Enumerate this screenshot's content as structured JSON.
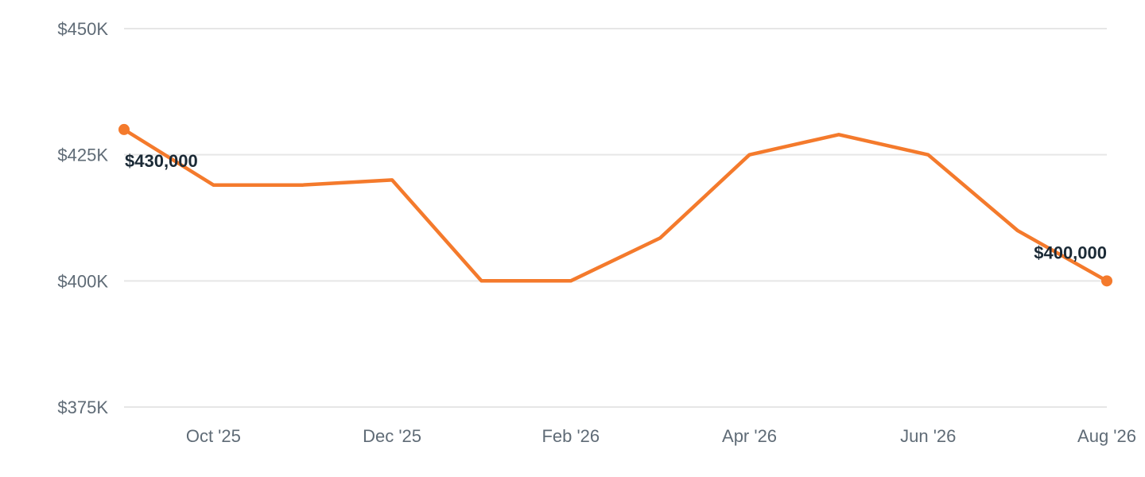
{
  "chart_data": {
    "type": "line",
    "title": "",
    "xlabel": "",
    "ylabel": "",
    "ylim": [
      375000,
      450000
    ],
    "y_ticks": [
      {
        "value": 450000,
        "label": "$450K"
      },
      {
        "value": 425000,
        "label": "$425K"
      },
      {
        "value": 400000,
        "label": "$400K"
      },
      {
        "value": 375000,
        "label": "$375K"
      }
    ],
    "x": [
      "2025-09",
      "2025-10",
      "2025-11",
      "2025-12",
      "2026-01",
      "2026-02",
      "2026-03",
      "2026-04",
      "2026-05",
      "2026-06",
      "2026-07",
      "2026-08"
    ],
    "x_ticks": [
      {
        "x": "2025-10",
        "label": "Oct '25"
      },
      {
        "x": "2025-12",
        "label": "Dec '25"
      },
      {
        "x": "2026-02",
        "label": "Feb '26"
      },
      {
        "x": "2026-04",
        "label": "Apr '26"
      },
      {
        "x": "2026-06",
        "label": "Jun '26"
      },
      {
        "x": "2026-08",
        "label": "Aug '26"
      }
    ],
    "grid": true,
    "legend": "none",
    "series": [
      {
        "color": "#f47a2c",
        "values": [
          430000,
          419000,
          419000,
          420000,
          400000,
          400000,
          408500,
          425000,
          429000,
          425000,
          410000,
          400000
        ]
      }
    ],
    "annotations": [
      {
        "x": "2025-09",
        "label": "$430,000"
      },
      {
        "x": "2026-08",
        "label": "$400,000"
      }
    ]
  }
}
